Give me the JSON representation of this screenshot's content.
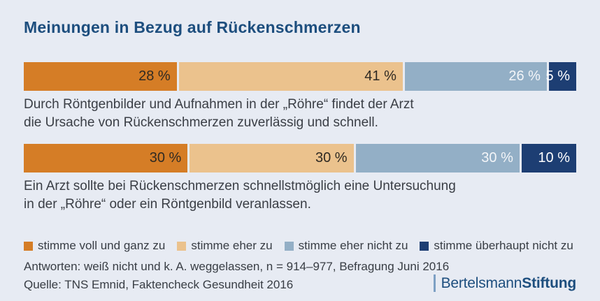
{
  "background": "#e7ebf3",
  "title": {
    "text": "Meinungen in Bezug auf Rückenschmerzen",
    "color": "#1d4e7e"
  },
  "chart_data": {
    "type": "bar",
    "subtype": "stacked-horizontal",
    "unit": "%",
    "xlim": [
      0,
      100
    ],
    "grid": false,
    "legend_position": "bottom",
    "value_label_format": "{v} %",
    "categories": [
      "Durch Röntgenbilder und Aufnahmen in der „Röhre“ findet der Arzt\ndie Ursache von Rückenschmerzen zuverlässig und schnell.",
      "Ein Arzt sollte bei Rückenschmerzen schnellstmöglich eine Untersuchung\nin der „Röhre“ oder ein Röntgenbild veranlassen."
    ],
    "series": [
      {
        "name": "stimme voll und ganz zu",
        "color": "#d57d26",
        "label_color": "#2f2a23",
        "values": [
          28,
          30
        ]
      },
      {
        "name": "stimme eher zu",
        "color": "#ebc28d",
        "label_color": "#2f2a23",
        "values": [
          41,
          30
        ]
      },
      {
        "name": "stimme eher nicht zu",
        "color": "#93afc6",
        "label_color": "#f3f5f8",
        "values": [
          26,
          30
        ]
      },
      {
        "name": "stimme überhaupt nicht zu",
        "color": "#1d3e73",
        "label_color": "#ffffff",
        "values": [
          5,
          10
        ]
      }
    ]
  },
  "footnotes": {
    "answers": "Antworten: weiß nicht und k. A. weggelassen, n = 914–977, Befragung Juni 2016",
    "source": "Quelle: TNS Emnid, Faktencheck Gesundheit 2016"
  },
  "logo": {
    "name": "Bertelsmann Stiftung",
    "prefix": "Bertelsmann",
    "suffix": "Stiftung",
    "color": "#1d4e7e",
    "bar_color": "#7da0c4"
  }
}
